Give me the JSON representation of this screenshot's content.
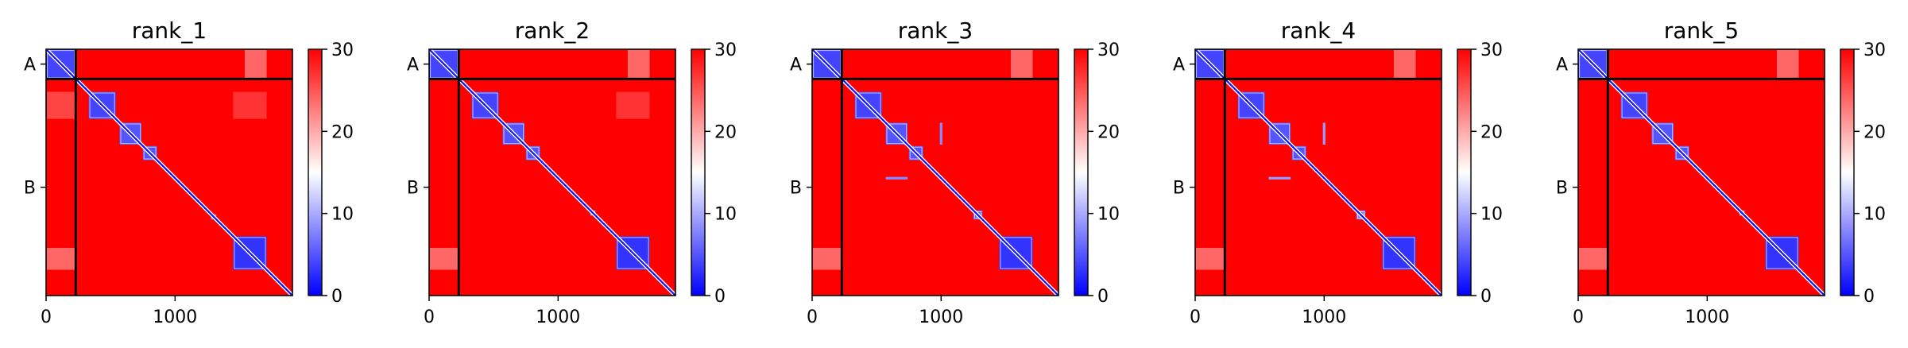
{
  "chart_data": {
    "type": "heatmap",
    "colormap": "bwr",
    "colors": {
      "low": "#0000ff",
      "mid": "#ffffff",
      "high": "#ff0000",
      "line": "#000000"
    },
    "vmin": 0,
    "vmax": 30,
    "n_residues": 1910,
    "chain_boundary": 230,
    "chain_labels": [
      {
        "label": "A",
        "center": 115
      },
      {
        "label": "B",
        "center": 1070
      }
    ],
    "x_ticks": [
      0,
      1000
    ],
    "x_tick_labels": [
      "0",
      "1000"
    ],
    "colorbar_ticks": [
      0,
      10,
      20,
      30
    ],
    "colorbar_tick_labels": [
      "0",
      "10",
      "20",
      "30"
    ],
    "panels": [
      {
        "title": "rank_1",
        "domains": [
          {
            "start": 0,
            "end": 230,
            "value": 4
          },
          {
            "start": 330,
            "end": 540,
            "value": 4
          },
          {
            "start": 570,
            "end": 740,
            "value": 5
          },
          {
            "start": 750,
            "end": 860,
            "value": 5
          },
          {
            "start": 1280,
            "end": 1320,
            "value": 7
          },
          {
            "start": 1450,
            "end": 1710,
            "value": 3
          }
        ],
        "off_diagonal": [
          {
            "rows": [
              0,
              230
            ],
            "cols": [
              1540,
              1710
            ],
            "value": 24
          },
          {
            "rows": [
              1540,
              1710
            ],
            "cols": [
              0,
              230
            ],
            "value": 24
          },
          {
            "rows": [
              330,
              540
            ],
            "cols": [
              0,
              230
            ],
            "value": 26
          },
          {
            "rows": [
              330,
              540
            ],
            "cols": [
              1450,
              1710
            ],
            "value": 27
          }
        ]
      },
      {
        "title": "rank_2",
        "domains": [
          {
            "start": 0,
            "end": 230,
            "value": 4
          },
          {
            "start": 330,
            "end": 540,
            "value": 4
          },
          {
            "start": 570,
            "end": 740,
            "value": 5
          },
          {
            "start": 750,
            "end": 860,
            "value": 5
          },
          {
            "start": 1250,
            "end": 1290,
            "value": 8
          },
          {
            "start": 1450,
            "end": 1710,
            "value": 3
          }
        ],
        "off_diagonal": [
          {
            "rows": [
              0,
              230
            ],
            "cols": [
              1540,
              1710
            ],
            "value": 24
          },
          {
            "rows": [
              1540,
              1710
            ],
            "cols": [
              0,
              230
            ],
            "value": 24
          },
          {
            "rows": [
              330,
              540
            ],
            "cols": [
              1450,
              1710
            ],
            "value": 27
          }
        ]
      },
      {
        "title": "rank_3",
        "domains": [
          {
            "start": 0,
            "end": 230,
            "value": 4
          },
          {
            "start": 330,
            "end": 540,
            "value": 4
          },
          {
            "start": 570,
            "end": 740,
            "value": 5
          },
          {
            "start": 750,
            "end": 860,
            "value": 5
          },
          {
            "start": 1250,
            "end": 1320,
            "value": 6
          },
          {
            "start": 1450,
            "end": 1710,
            "value": 3
          }
        ],
        "off_diagonal": [
          {
            "rows": [
              0,
              230
            ],
            "cols": [
              1540,
              1710
            ],
            "value": 24
          },
          {
            "rows": [
              1540,
              1710
            ],
            "cols": [
              0,
              230
            ],
            "value": 24
          },
          {
            "rows": [
              570,
              740
            ],
            "cols": [
              990,
              1010
            ],
            "value": 8
          },
          {
            "rows": [
              990,
              1010
            ],
            "cols": [
              570,
              740
            ],
            "value": 8
          }
        ]
      },
      {
        "title": "rank_4",
        "domains": [
          {
            "start": 0,
            "end": 230,
            "value": 4
          },
          {
            "start": 330,
            "end": 540,
            "value": 4
          },
          {
            "start": 570,
            "end": 740,
            "value": 5
          },
          {
            "start": 750,
            "end": 860,
            "value": 5
          },
          {
            "start": 1250,
            "end": 1320,
            "value": 7
          },
          {
            "start": 1450,
            "end": 1710,
            "value": 3
          }
        ],
        "off_diagonal": [
          {
            "rows": [
              0,
              230
            ],
            "cols": [
              1540,
              1710
            ],
            "value": 24
          },
          {
            "rows": [
              1540,
              1710
            ],
            "cols": [
              0,
              230
            ],
            "value": 24
          },
          {
            "rows": [
              570,
              740
            ],
            "cols": [
              990,
              1010
            ],
            "value": 9
          },
          {
            "rows": [
              990,
              1010
            ],
            "cols": [
              570,
              740
            ],
            "value": 9
          }
        ]
      },
      {
        "title": "rank_5",
        "domains": [
          {
            "start": 0,
            "end": 230,
            "value": 4
          },
          {
            "start": 330,
            "end": 540,
            "value": 4
          },
          {
            "start": 570,
            "end": 740,
            "value": 5
          },
          {
            "start": 750,
            "end": 860,
            "value": 5
          },
          {
            "start": 1250,
            "end": 1290,
            "value": 9
          },
          {
            "start": 1450,
            "end": 1710,
            "value": 3
          }
        ],
        "off_diagonal": [
          {
            "rows": [
              0,
              230
            ],
            "cols": [
              1540,
              1710
            ],
            "value": 24
          },
          {
            "rows": [
              1540,
              1710
            ],
            "cols": [
              0,
              230
            ],
            "value": 24
          }
        ]
      }
    ]
  }
}
